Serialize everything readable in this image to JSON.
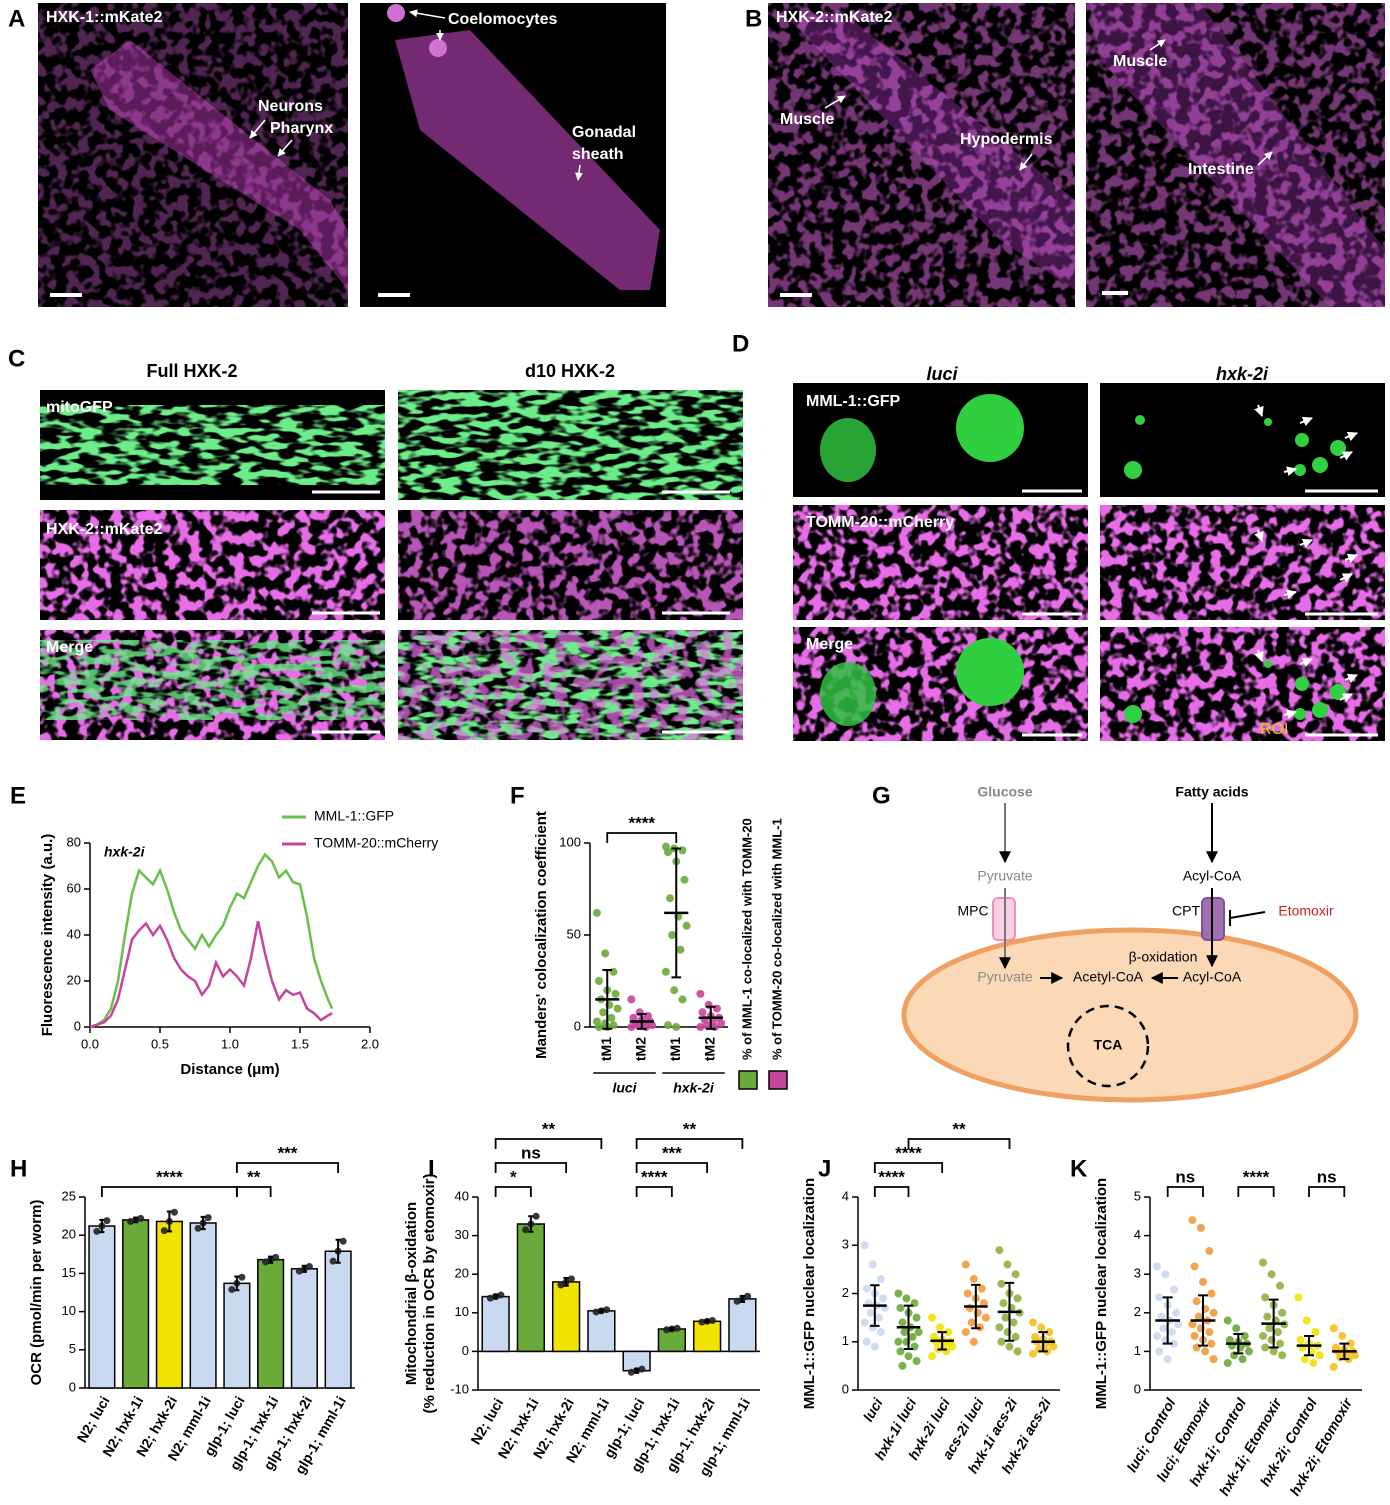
{
  "figure_labels": [
    "A",
    "B",
    "C",
    "D",
    "E",
    "F",
    "G",
    "H",
    "I",
    "J",
    "K"
  ],
  "panel_a": {
    "title": "HXK-1::mKate2",
    "annotations": [
      "Neurons",
      "Pharynx",
      "Coelomocytes",
      "Gonadal",
      "sheath"
    ]
  },
  "panel_b": {
    "title": "HXK-2::mKate2",
    "annotations": [
      "Muscle",
      "Hypodermis",
      "Muscle",
      "Intestine"
    ]
  },
  "panel_c": {
    "columns": [
      "Full HXK-2",
      "d10 HXK-2"
    ],
    "rows": [
      "mitoGFP",
      "HXK-2::mKate2",
      "Merge"
    ]
  },
  "panel_d": {
    "columns": [
      "luci",
      "hxk-2i"
    ],
    "rows": [
      "MML-1::GFP",
      "TOMM-20::mCherry",
      "Merge"
    ],
    "roi": "ROI"
  },
  "diagram": {
    "labels": [
      "Glucose",
      "Pyruvate",
      "MPC",
      "Pyruvate",
      "Acetyl-CoA",
      "Fatty acids",
      "Acyl-CoA",
      "CPT",
      "Etomoxir",
      "β-oxidation",
      "Acyl-CoA",
      "TCA"
    ]
  },
  "chart_data": [
    {
      "type": "line",
      "title": "hxk-2i",
      "xlabel": "Distance (μm)",
      "ylabel": "Fluorescence intensity (a.u.)",
      "xlim": [
        0,
        2
      ],
      "xticks": [
        {
          "value": 0,
          "label": "0.0"
        },
        {
          "value": 0.5,
          "label": "0.5"
        },
        {
          "value": 1,
          "label": "1.0"
        },
        {
          "value": 1.5,
          "label": "1.5"
        },
        {
          "value": 2,
          "label": "2.0"
        }
      ],
      "ylim": [
        0,
        80
      ],
      "yticks": [
        0,
        20,
        40,
        60,
        80
      ],
      "x": [
        0,
        0.05,
        0.1,
        0.15,
        0.2,
        0.25,
        0.3,
        0.35,
        0.4,
        0.45,
        0.5,
        0.55,
        0.6,
        0.65,
        0.7,
        0.75,
        0.8,
        0.85,
        0.9,
        0.95,
        1.0,
        1.05,
        1.1,
        1.15,
        1.2,
        1.25,
        1.3,
        1.35,
        1.4,
        1.45,
        1.5,
        1.55,
        1.6,
        1.65,
        1.7,
        1.73
      ],
      "series": [
        {
          "name": "MML-1::GFP",
          "color": "#6abf4b",
          "values": [
            0,
            1,
            3,
            8,
            20,
            40,
            58,
            68,
            65,
            62,
            68,
            60,
            50,
            42,
            38,
            34,
            40,
            35,
            40,
            44,
            52,
            58,
            56,
            63,
            70,
            75,
            72,
            65,
            68,
            63,
            62,
            48,
            30,
            20,
            12,
            8
          ]
        },
        {
          "name": "TOMM-20::mCherry",
          "color": "#c8449c",
          "values": [
            0,
            1,
            2,
            5,
            12,
            25,
            38,
            42,
            45,
            40,
            44,
            38,
            30,
            25,
            22,
            20,
            14,
            18,
            28,
            22,
            25,
            22,
            18,
            30,
            46,
            32,
            20,
            12,
            16,
            14,
            15,
            8,
            6,
            3,
            5,
            6
          ]
        }
      ]
    },
    {
      "type": "dot",
      "ylabel": "Manders' colocalization coefficient",
      "ylim": [
        0,
        100
      ],
      "yticks": [
        0,
        50,
        100
      ],
      "categories": [
        "tM1",
        "tM2",
        "tM1",
        "tM2"
      ],
      "groups": [
        "luci",
        "hxk-2i"
      ],
      "colors": [
        "#6aaa3a",
        "#c8449c",
        "#6aaa3a",
        "#c8449c"
      ],
      "values": [
        15,
        3,
        62,
        5
      ],
      "errors": [
        16,
        4,
        35,
        6
      ],
      "points": [
        [
          62,
          40,
          30,
          25,
          20,
          18,
          15,
          12,
          10,
          8,
          5,
          3,
          2,
          1,
          0,
          0
        ],
        [
          15,
          8,
          6,
          5,
          4,
          3,
          2,
          2,
          1,
          1,
          0,
          0
        ],
        [
          98,
          97,
          96,
          95,
          90,
          80,
          70,
          60,
          55,
          50,
          42,
          30,
          20,
          15,
          1,
          0
        ],
        [
          18,
          12,
          10,
          8,
          6,
          5,
          4,
          3,
          2,
          1,
          0,
          0
        ]
      ],
      "legend": [
        {
          "name": "% of MML-1 co-localized with TOMM-20",
          "color": "#6aaa3a"
        },
        {
          "name": "% of TOMM-20 co-localized with MML-1",
          "color": "#c8449c"
        }
      ],
      "brackets": [
        {
          "from": 0,
          "to": 2,
          "label": "****"
        }
      ]
    },
    {
      "type": "bar",
      "ylabel": "OCR (pmol/min per worm)",
      "ylim": [
        0,
        25
      ],
      "yticks": [
        0,
        5,
        10,
        15,
        20,
        25
      ],
      "categories": [
        "N2; luci",
        "N2; hxk-1i",
        "N2; hxk-2i",
        "N2; mml-1i",
        "glp-1; luci",
        "glp-1; hxk-1i",
        "glp-1; hxk-2i",
        "glp-1; mml-1i"
      ],
      "colors": [
        "#c9d9ef",
        "#6aaa3a",
        "#f2e200",
        "#c9d9ef",
        "#c9d9ef",
        "#6aaa3a",
        "#c9d9ef",
        "#c9d9ef"
      ],
      "values": [
        21.2,
        22,
        21.8,
        21.6,
        13.7,
        16.8,
        15.6,
        17.9
      ],
      "errors": [
        0.8,
        0.3,
        1.3,
        0.8,
        0.9,
        0.4,
        0.4,
        1.5
      ],
      "points": [
        [
          20.5,
          21.2,
          21.9
        ],
        [
          21.8,
          22,
          22.2
        ],
        [
          20.6,
          21.8,
          23
        ],
        [
          20.9,
          21.6,
          22.3
        ],
        [
          12.9,
          13.7,
          14.5
        ],
        [
          16.5,
          16.8,
          17.1
        ],
        [
          15.3,
          15.6,
          15.9
        ],
        [
          16.6,
          17.9,
          19.2
        ]
      ],
      "brackets": [
        {
          "from": 0,
          "to": 4,
          "label": "****"
        },
        {
          "from": 4,
          "to": 5,
          "label": "**"
        },
        {
          "from": 4,
          "to": 7,
          "label": "***"
        }
      ]
    },
    {
      "type": "bar",
      "ylabel": [
        "Mitochondrial β-oxidation",
        "(% reduction in OCR by etomoxir)"
      ],
      "ylim": [
        -10,
        40
      ],
      "yticks": [
        -10,
        0,
        10,
        20,
        30,
        40
      ],
      "categories": [
        "N2; luci",
        "N2; hxk-1i",
        "N2; hxk-2i",
        "N2; mml-1i",
        "glp-1; luci",
        "glp-1; hxk-1i",
        "glp-1; hxk-2i",
        "glp-1; mml-1i"
      ],
      "colors": [
        "#c9d9ef",
        "#6aaa3a",
        "#f2e200",
        "#c9d9ef",
        "#c9d9ef",
        "#6aaa3a",
        "#f2e200",
        "#c9d9ef"
      ],
      "values": [
        14.2,
        33,
        18,
        10.5,
        -5,
        5.8,
        7.8,
        13.6
      ],
      "errors": [
        0.5,
        2,
        1,
        0.4,
        0.5,
        0.3,
        0.3,
        0.8
      ],
      "points": [
        [
          13.8,
          14.2,
          14.6
        ],
        [
          31.5,
          33,
          35
        ],
        [
          17.2,
          18,
          18.8
        ],
        [
          10.2,
          10.5,
          10.8
        ],
        [
          -5.4,
          -5,
          -4.6
        ],
        [
          5.6,
          5.8,
          6
        ],
        [
          7.6,
          7.8,
          8
        ],
        [
          13,
          13.6,
          14.3
        ]
      ],
      "brackets": [
        {
          "from": 0,
          "to": 1,
          "label": "*"
        },
        {
          "from": 0,
          "to": 2,
          "label": "ns"
        },
        {
          "from": 0,
          "to": 3,
          "label": "**"
        },
        {
          "from": 4,
          "to": 5,
          "label": "****"
        },
        {
          "from": 4,
          "to": 6,
          "label": "***"
        },
        {
          "from": 4,
          "to": 7,
          "label": "**"
        }
      ]
    },
    {
      "type": "dot",
      "ylabel": "MML-1::GFP nuclear localization",
      "ylim": [
        0,
        4
      ],
      "yticks": [
        0,
        1,
        2,
        3,
        4
      ],
      "categories": [
        "luci",
        "hxk-1i luci",
        "hxk-2i luci",
        "acs-2i luci",
        "hxk-1i acs-2i",
        "hxk-2i acs-2i"
      ],
      "colors": [
        "#c9d9ef",
        "#6aaa3a",
        "#f2e200",
        "#f29a3c",
        "#8fb040",
        "#f5c020"
      ],
      "values": [
        1.75,
        1.3,
        1.02,
        1.73,
        1.62,
        1.0
      ],
      "errors": [
        0.42,
        0.45,
        0.18,
        0.45,
        0.6,
        0.2
      ],
      "points": [
        [
          3.0,
          2.6,
          2.3,
          2.1,
          2.0,
          1.9,
          1.8,
          1.75,
          1.7,
          1.6,
          1.5,
          1.4,
          1.3,
          1.2,
          1.0,
          0.9
        ],
        [
          2.0,
          1.9,
          1.8,
          1.7,
          1.6,
          1.5,
          1.4,
          1.3,
          1.2,
          1.2,
          1.1,
          1.0,
          1.0,
          0.9,
          0.8,
          0.7,
          0.6,
          0.5
        ],
        [
          1.5,
          1.3,
          1.2,
          1.1,
          1.05,
          1.0,
          1.0,
          0.95,
          0.9,
          0.85,
          0.8,
          0.7
        ],
        [
          2.6,
          2.3,
          2.1,
          2.0,
          1.9,
          1.8,
          1.7,
          1.6,
          1.5,
          1.4,
          1.3,
          1.2,
          1.0
        ],
        [
          2.9,
          2.6,
          2.4,
          2.2,
          2.0,
          1.9,
          1.8,
          1.7,
          1.6,
          1.5,
          1.4,
          1.3,
          1.2,
          1.1,
          1.0,
          0.9,
          0.8
        ],
        [
          1.4,
          1.3,
          1.2,
          1.1,
          1.05,
          1.0,
          1.0,
          0.95,
          0.9,
          0.85,
          0.8,
          0.75
        ]
      ],
      "brackets": [
        {
          "from": 0,
          "to": 1,
          "label": "****"
        },
        {
          "from": 0,
          "to": 2,
          "label": "****"
        },
        {
          "from": 1,
          "to": 4,
          "label": "**"
        }
      ]
    },
    {
      "type": "dot",
      "ylabel": "MML-1::GFP nuclear localization",
      "ylim": [
        0,
        5
      ],
      "yticks": [
        0,
        1,
        2,
        3,
        4,
        5
      ],
      "categories": [
        "luci; Control",
        "luci; Etomoxir",
        "hxk-1i; Control",
        "hxk-1i; Etomoxir",
        "hxk-2i; Control",
        "hxk-2i; Etomoxir"
      ],
      "colors": [
        "#c9d9ef",
        "#f29a3c",
        "#6aaa3a",
        "#8fb040",
        "#f2e200",
        "#f5c020"
      ],
      "values": [
        1.8,
        1.8,
        1.2,
        1.72,
        1.15,
        1.0
      ],
      "errors": [
        0.6,
        0.65,
        0.25,
        0.62,
        0.25,
        0.2
      ],
      "points": [
        [
          3.2,
          3.0,
          2.6,
          2.4,
          2.2,
          2.0,
          1.9,
          1.8,
          1.7,
          1.6,
          1.5,
          1.4,
          1.3,
          1.2,
          1.0,
          0.8
        ],
        [
          4.4,
          4.2,
          3.6,
          3.2,
          2.8,
          2.5,
          2.3,
          2.1,
          2.0,
          1.9,
          1.8,
          1.7,
          1.6,
          1.5,
          1.4,
          1.3,
          1.2,
          1.1,
          1.0,
          0.8
        ],
        [
          1.8,
          1.6,
          1.4,
          1.3,
          1.25,
          1.2,
          1.15,
          1.1,
          1.0,
          0.9,
          0.8,
          0.7
        ],
        [
          3.3,
          3.0,
          2.7,
          2.4,
          2.2,
          2.0,
          1.9,
          1.8,
          1.7,
          1.6,
          1.5,
          1.4,
          1.3,
          1.2,
          1.1,
          1.0,
          0.9
        ],
        [
          2.4,
          1.8,
          1.5,
          1.3,
          1.2,
          1.15,
          1.1,
          1.0,
          0.9,
          0.8,
          0.7
        ],
        [
          1.6,
          1.4,
          1.2,
          1.1,
          1.05,
          1.0,
          1.0,
          0.95,
          0.9,
          0.85,
          0.8,
          0.6
        ]
      ],
      "brackets": [
        {
          "from": 0,
          "to": 1,
          "label": "ns"
        },
        {
          "from": 2,
          "to": 3,
          "label": "****"
        },
        {
          "from": 4,
          "to": 5,
          "label": "ns"
        }
      ]
    }
  ]
}
